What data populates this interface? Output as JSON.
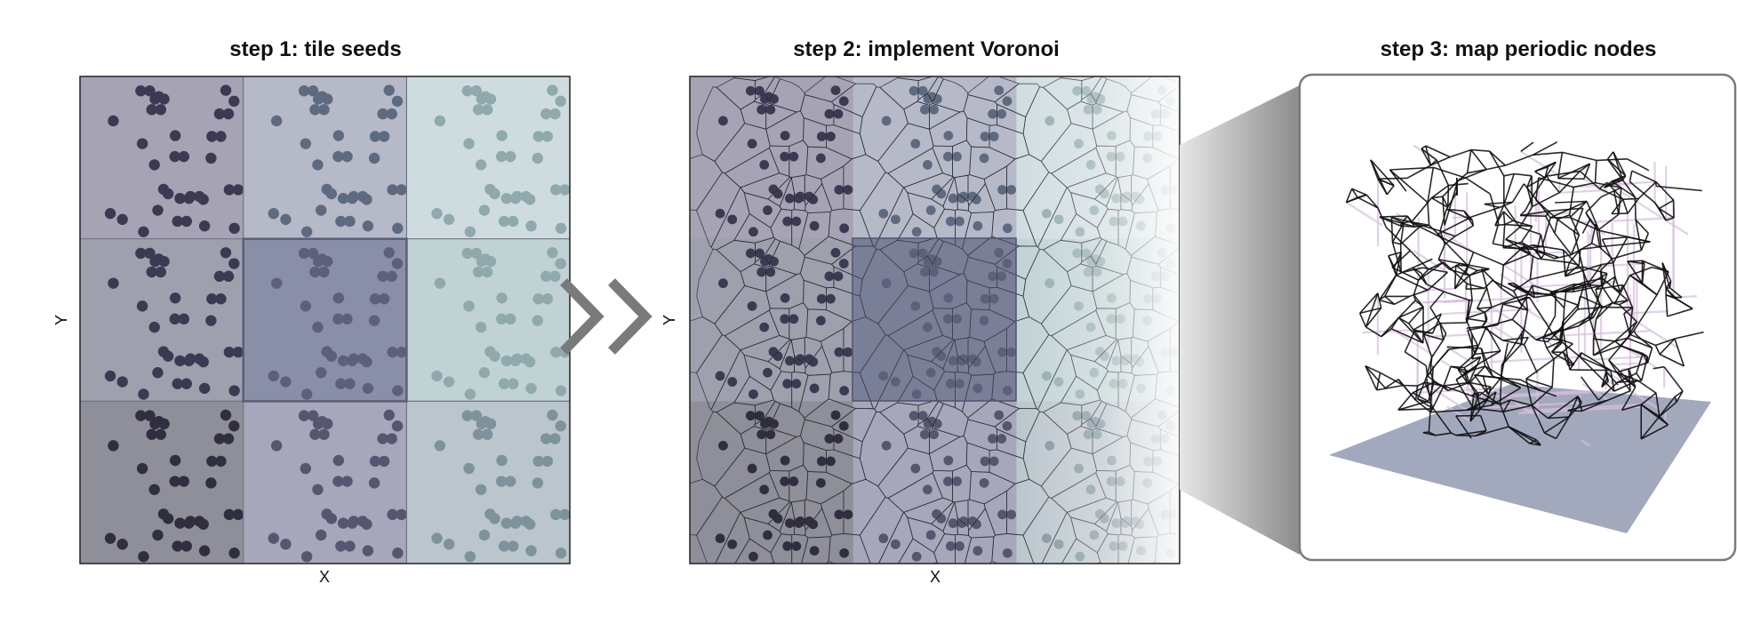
{
  "steps": [
    {
      "title": "step 1: tile seeds",
      "xlabel": "X",
      "ylabel": "Y"
    },
    {
      "title": "step 2: implement Voronoi",
      "xlabel": "X",
      "ylabel": "Y"
    },
    {
      "title": "step 3: map periodic nodes"
    }
  ],
  "colors": {
    "tile_backgrounds": [
      "#a6a3b5",
      "#b6bac8",
      "#cfdcdf",
      "#9fa0ae",
      "#8a8fa8",
      "#c0d2d4",
      "#8e8f99",
      "#a6a7ba",
      "#bac5cc"
    ],
    "seed_colors": [
      "#3c3a52",
      "#5e6a80",
      "#8fa9ad",
      "#3c3a52",
      "#5c6079",
      "#8fa9ad",
      "#302f40",
      "#55566f",
      "#7e929c"
    ],
    "central_tile_outline": "#5a5e7a",
    "voronoi_edges": "#2a2a34",
    "arrow": "#7a7a7a",
    "network_edges": "#111111",
    "periodic_ghost_edges": "#d8bfe0",
    "floor_plane": "#9ea4b8"
  },
  "icons": {
    "step_arrow": "double-chevron-right-icon"
  }
}
